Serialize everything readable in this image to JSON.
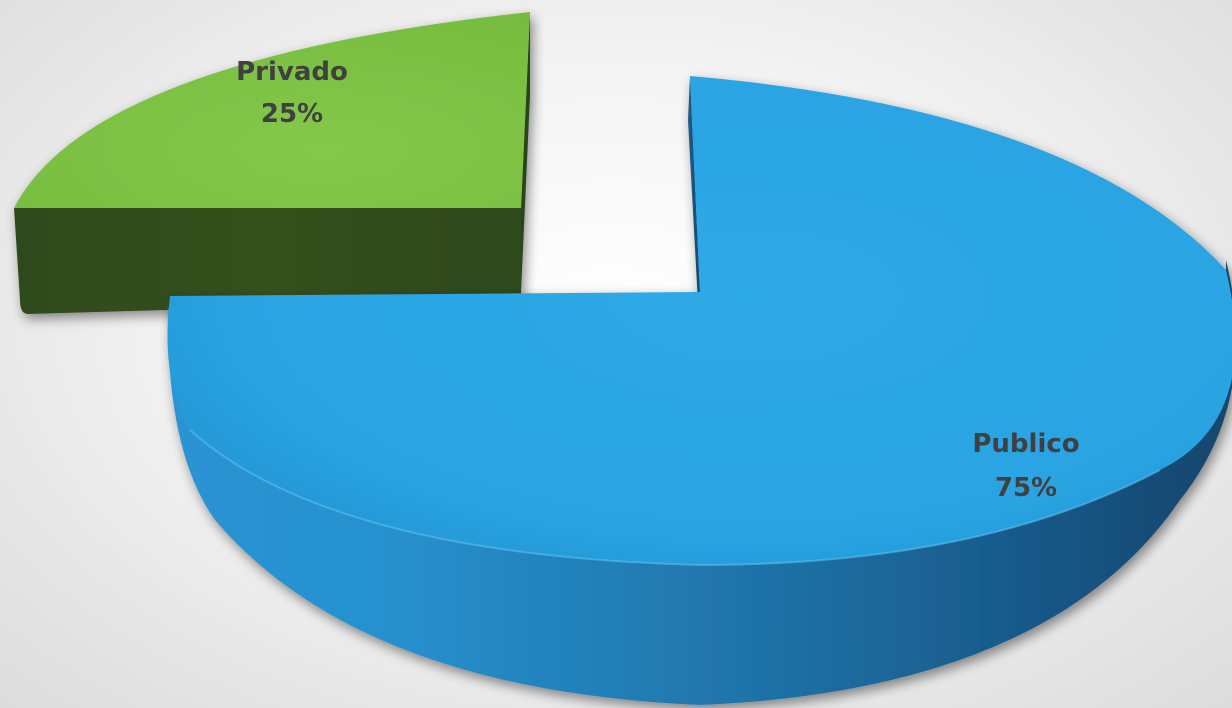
{
  "chart_data": {
    "type": "pie",
    "style": "3d-exploded",
    "slices": [
      {
        "label": "Privado",
        "value": 25,
        "display": "25%",
        "color": "#7bc143"
      },
      {
        "label": "Publico",
        "value": 75,
        "display": "75%",
        "color": "#29a3e1"
      }
    ]
  }
}
